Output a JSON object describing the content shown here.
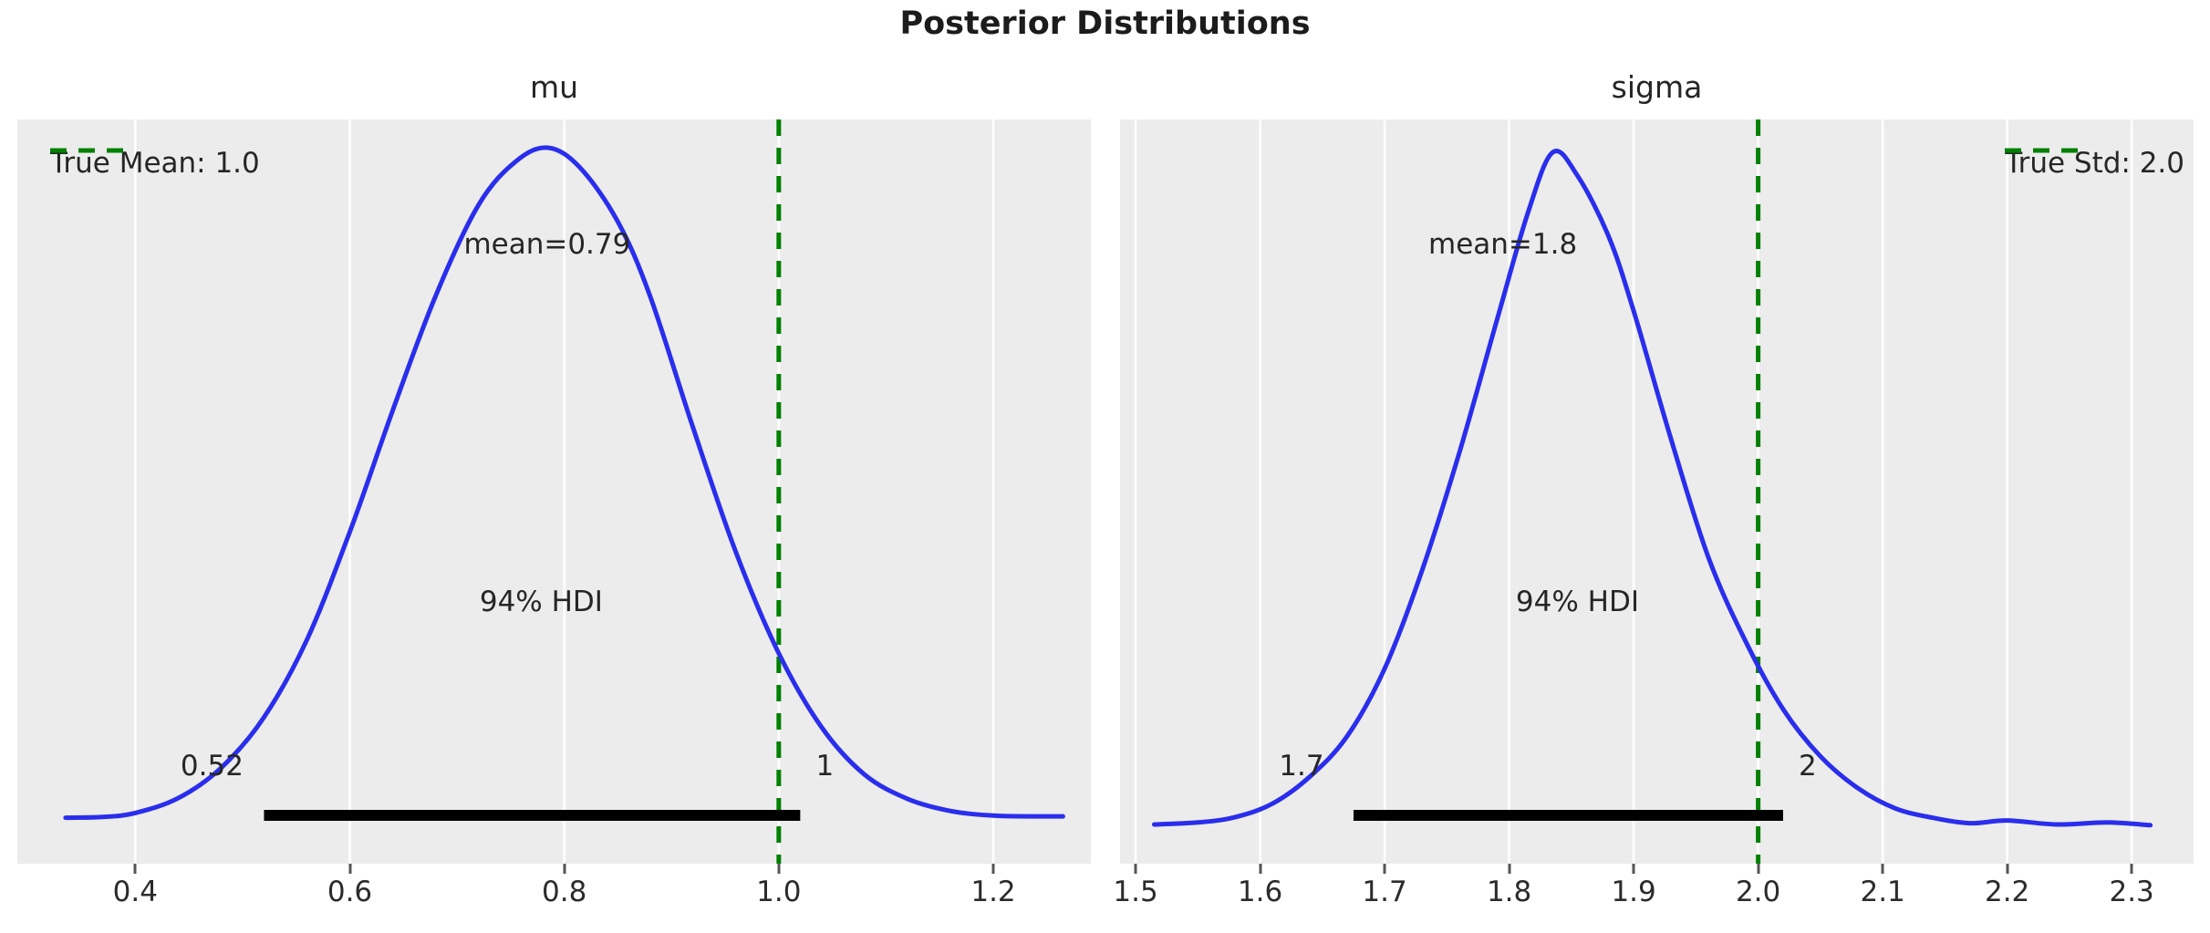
{
  "title": "Posterior Distributions",
  "colors": {
    "curve": "#2a2eec",
    "true_line": "#008000",
    "hdi_bar": "#000000",
    "panel_bg": "#ececec",
    "grid": "#ffffff",
    "text": "#262626",
    "tick": "#555555"
  },
  "chart_data": [
    {
      "type": "line",
      "title": "mu",
      "legend": {
        "label": "True Mean: 1.0",
        "position": "top-left"
      },
      "true_value": 1.0,
      "mean": 0.79,
      "mean_label": "mean=0.79",
      "hdi": {
        "label": "94% HDI",
        "percent": 94,
        "lower": 0.52,
        "upper": 1.02,
        "lower_label": "0.52",
        "upper_label": "1"
      },
      "xlim": [
        0.29,
        1.291
      ],
      "xticks": [
        0.4,
        0.6,
        0.8,
        1.0,
        1.2
      ],
      "xtick_labels": [
        "0.4",
        "0.6",
        "0.8",
        "1.0",
        "1.2"
      ],
      "grid": "vertical-only",
      "kde": {
        "x": [
          0.335,
          0.37,
          0.4,
          0.44,
          0.48,
          0.52,
          0.56,
          0.6,
          0.64,
          0.68,
          0.72,
          0.755,
          0.785,
          0.815,
          0.85,
          0.88,
          0.92,
          0.96,
          1.0,
          1.04,
          1.08,
          1.12,
          1.16,
          1.2,
          1.24,
          1.265
        ],
        "density": [
          0.006,
          0.007,
          0.013,
          0.035,
          0.08,
          0.155,
          0.27,
          0.43,
          0.61,
          0.78,
          0.915,
          0.98,
          1.0,
          0.97,
          0.89,
          0.78,
          0.585,
          0.4,
          0.25,
          0.14,
          0.07,
          0.034,
          0.016,
          0.009,
          0.008,
          0.008
        ]
      }
    },
    {
      "type": "line",
      "title": "sigma",
      "legend": {
        "label": "True Std: 2.0",
        "position": "top-right"
      },
      "true_value": 2.0,
      "mean": 1.8,
      "mean_label": "mean=1.8",
      "hdi": {
        "label": "94% HDI",
        "percent": 94,
        "lower": 1.675,
        "upper": 2.02,
        "lower_label": "1.7",
        "upper_label": "2"
      },
      "xlim": [
        1.4875,
        2.3497
      ],
      "xticks": [
        1.5,
        1.6,
        1.7,
        1.8,
        1.9,
        2.0,
        2.1,
        2.2,
        2.3
      ],
      "xtick_labels": [
        "1.5",
        "1.6",
        "1.7",
        "1.8",
        "1.9",
        "2.0",
        "2.1",
        "2.2",
        "2.3"
      ],
      "grid": "vertical-only",
      "kde": {
        "x": [
          1.515,
          1.55,
          1.58,
          1.61,
          1.64,
          1.67,
          1.7,
          1.73,
          1.76,
          1.79,
          1.815,
          1.835,
          1.855,
          1.88,
          1.9,
          1.93,
          1.96,
          1.99,
          2.02,
          2.05,
          2.08,
          2.11,
          2.14,
          2.17,
          2.2,
          2.24,
          2.28,
          2.315
        ],
        "density": [
          0.004,
          0.007,
          0.015,
          0.035,
          0.075,
          0.135,
          0.235,
          0.38,
          0.555,
          0.75,
          0.91,
          1.0,
          0.965,
          0.875,
          0.765,
          0.575,
          0.4,
          0.275,
          0.175,
          0.105,
          0.058,
          0.028,
          0.014,
          0.006,
          0.01,
          0.004,
          0.007,
          0.003
        ]
      }
    }
  ]
}
